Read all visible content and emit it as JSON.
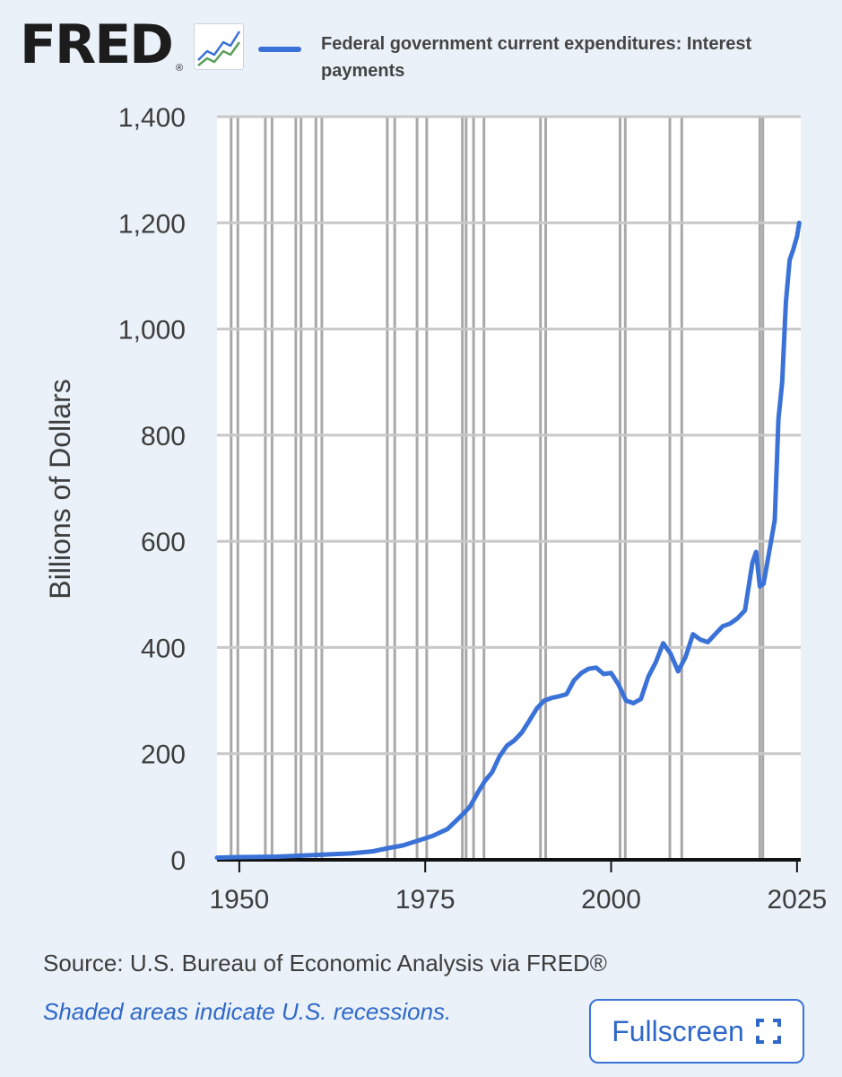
{
  "header": {
    "logo_text": "FRED",
    "logo_mark": "®",
    "logo_icon": "line-graph-icon"
  },
  "footer": {
    "source": "Source: U.S. Bureau of Economic Analysis via FRED®",
    "shaded_note": "Shaded areas indicate U.S. recessions.",
    "fullscreen_label": "Fullscreen",
    "fullscreen_icon": "expand-corners-icon"
  },
  "colors": {
    "background": "#eaf1f9",
    "series": "#3a72d8",
    "recession": "#a8a8a8",
    "grid": "#c8c8c8",
    "link": "#2f68c9"
  },
  "chart_data": {
    "type": "line",
    "title": "",
    "xlabel": "",
    "ylabel": "Billions of Dollars",
    "xlim": [
      1947,
      2025.5
    ],
    "ylim": [
      0,
      1400
    ],
    "x_ticks": [
      1950,
      1975,
      2000,
      2025
    ],
    "y_ticks": [
      0,
      200,
      400,
      600,
      800,
      1000,
      1200,
      1400
    ],
    "y_tick_labels": [
      "0",
      "200",
      "400",
      "600",
      "800",
      "1,000",
      "1,200",
      "1,400"
    ],
    "legend": [
      "Federal government current expenditures: Interest payments"
    ],
    "legend_position": "top",
    "recessions": [
      [
        1948.9,
        1949.8
      ],
      [
        1953.5,
        1954.4
      ],
      [
        1957.6,
        1958.3
      ],
      [
        1960.3,
        1961.1
      ],
      [
        1969.9,
        1970.9
      ],
      [
        1973.9,
        1975.2
      ],
      [
        1980.0,
        1980.5
      ],
      [
        1981.5,
        1982.9
      ],
      [
        1990.5,
        1991.2
      ],
      [
        2001.2,
        2001.9
      ],
      [
        2007.9,
        2009.5
      ],
      [
        2020.0,
        2020.4
      ]
    ],
    "series": [
      {
        "name": "Federal government current expenditures: Interest payments",
        "x": [
          1947,
          1950,
          1955,
          1960,
          1965,
          1968,
          1970,
          1972,
          1974,
          1976,
          1978,
          1980,
          1981,
          1982,
          1983,
          1984,
          1985,
          1986,
          1987,
          1988,
          1989,
          1990,
          1991,
          1992,
          1993,
          1994,
          1995,
          1996,
          1997,
          1998,
          1999,
          2000,
          2001,
          2002,
          2003,
          2004,
          2005,
          2006,
          2007,
          2008,
          2009,
          2010,
          2011,
          2012,
          2013,
          2014,
          2015,
          2016,
          2017,
          2018,
          2019,
          2019.5,
          2020,
          2020.5,
          2021,
          2022,
          2022.5,
          2023,
          2023.5,
          2024,
          2024.5,
          2025,
          2025.3
        ],
        "values": [
          4,
          5,
          6,
          9,
          12,
          16,
          22,
          27,
          36,
          45,
          58,
          85,
          100,
          125,
          148,
          165,
          195,
          215,
          225,
          240,
          262,
          285,
          300,
          305,
          308,
          312,
          338,
          352,
          360,
          362,
          350,
          352,
          330,
          300,
          295,
          303,
          345,
          372,
          408,
          388,
          355,
          382,
          425,
          415,
          410,
          425,
          440,
          445,
          455,
          470,
          560,
          580,
          515,
          520,
          560,
          640,
          830,
          900,
          1050,
          1130,
          1150,
          1175,
          1200
        ]
      }
    ]
  }
}
